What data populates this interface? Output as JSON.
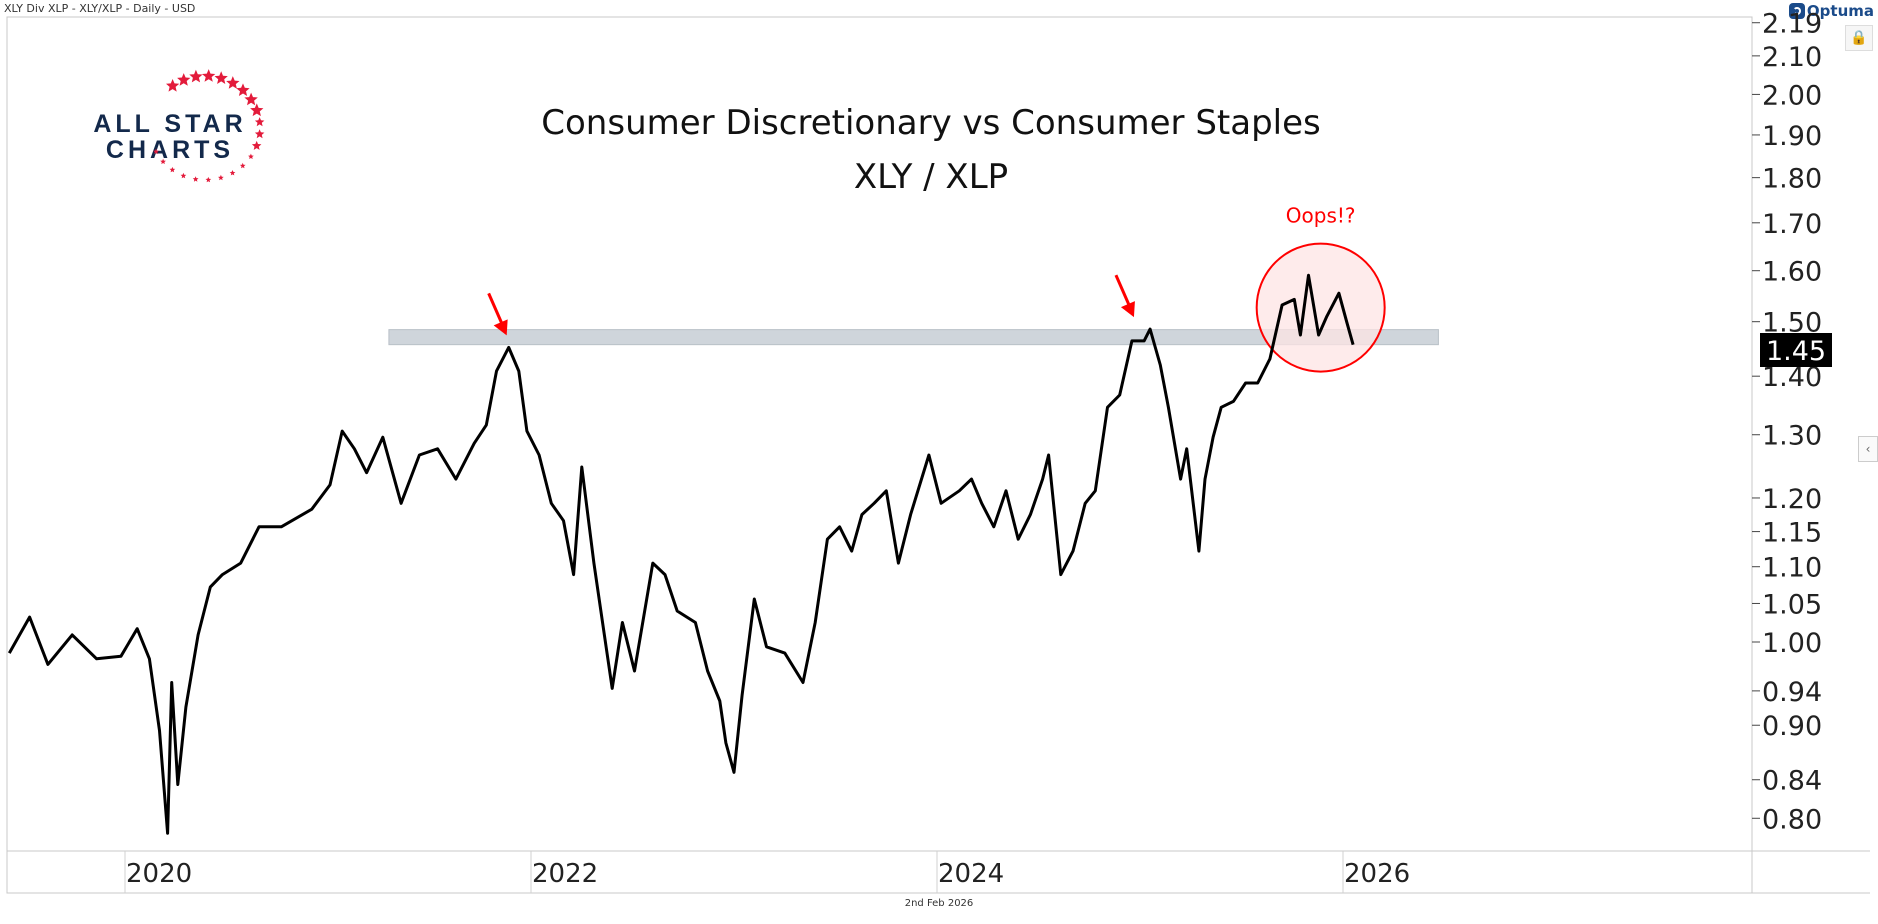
{
  "header": {
    "title": "XLY Div XLP - XLY/XLP - Daily - USD",
    "brand": "Optuma"
  },
  "logo": {
    "line1": "ALL STAR",
    "line2": "CHARTS"
  },
  "footer": {
    "date": "2nd Feb 2026"
  },
  "colors": {
    "line": "#000000",
    "band": "#cfd5db",
    "annotation": "#ff0000",
    "circle_fill": "#fde4e4",
    "logo_text": "#13294b",
    "logo_star": "#e31b3b"
  },
  "icons": {
    "lock": "lock-icon",
    "collapse": "chevron-left-icon"
  },
  "chart_data": {
    "type": "line",
    "title": "Consumer Discretionary vs Consumer Staples",
    "subtitle": "XLY / XLP",
    "xlabel": "",
    "ylabel": "",
    "yscale": "log",
    "ylim": [
      0.77,
      2.2
    ],
    "xlim": [
      2019.4,
      2027.2
    ],
    "x_ticks": [
      "2020",
      "2022",
      "2024",
      "2026"
    ],
    "y_ticks": [
      "2.19",
      "2.10",
      "2.00",
      "1.90",
      "1.80",
      "1.70",
      "1.60",
      "1.50",
      "1.40",
      "1.30",
      "1.20",
      "1.15",
      "1.10",
      "1.05",
      "1.00",
      "0.94",
      "0.90",
      "0.84",
      "0.80"
    ],
    "last_value": "1.45",
    "grid": false,
    "series": [
      {
        "name": "XLY/XLP",
        "x": [
          2019.43,
          2019.53,
          2019.62,
          2019.74,
          2019.86,
          2019.98,
          2020.06,
          2020.12,
          2020.17,
          2020.21,
          2020.23,
          2020.26,
          2020.3,
          2020.36,
          2020.42,
          2020.48,
          2020.57,
          2020.66,
          2020.77,
          2020.92,
          2021.01,
          2021.07,
          2021.13,
          2021.19,
          2021.27,
          2021.36,
          2021.45,
          2021.54,
          2021.63,
          2021.72,
          2021.78,
          2021.83,
          2021.89,
          2021.94,
          2021.98,
          2022.04,
          2022.1,
          2022.16,
          2022.21,
          2022.25,
          2022.31,
          2022.37,
          2022.4,
          2022.45,
          2022.51,
          2022.6,
          2022.66,
          2022.72,
          2022.81,
          2022.87,
          2022.93,
          2022.96,
          2023.0,
          2023.04,
          2023.1,
          2023.16,
          2023.25,
          2023.34,
          2023.4,
          2023.46,
          2023.52,
          2023.58,
          2023.63,
          2023.69,
          2023.75,
          2023.81,
          2023.87,
          2023.96,
          2024.02,
          2024.11,
          2024.17,
          2024.22,
          2024.28,
          2024.34,
          2024.4,
          2024.46,
          2024.52,
          2024.55,
          2024.61,
          2024.67,
          2024.73,
          2024.78,
          2024.84,
          2024.9,
          2024.96,
          2025.02,
          2025.05,
          2025.1,
          2025.14,
          2025.2,
          2025.23,
          2025.29,
          2025.32,
          2025.36,
          2025.4,
          2025.46,
          2025.52,
          2025.58,
          2025.64,
          2025.7,
          2025.76,
          2025.79,
          2025.83,
          2025.88,
          2025.92,
          2025.98,
          2026.02,
          2026.05
        ],
        "values": [
          0.986,
          1.032,
          0.972,
          1.009,
          0.979,
          0.982,
          1.017,
          0.979,
          0.894,
          0.785,
          0.95,
          0.835,
          0.921,
          1.009,
          1.072,
          1.089,
          1.105,
          1.157,
          1.157,
          1.183,
          1.22,
          1.306,
          1.277,
          1.239,
          1.296,
          1.192,
          1.267,
          1.277,
          1.229,
          1.286,
          1.316,
          1.409,
          1.452,
          1.409,
          1.306,
          1.267,
          1.192,
          1.166,
          1.089,
          1.248,
          1.105,
          0.994,
          0.943,
          1.025,
          0.964,
          1.105,
          1.089,
          1.04,
          1.025,
          0.964,
          0.928,
          0.88,
          0.848,
          0.935,
          1.056,
          0.994,
          0.986,
          0.95,
          1.025,
          1.139,
          1.157,
          1.122,
          1.175,
          1.192,
          1.211,
          1.105,
          1.175,
          1.267,
          1.192,
          1.211,
          1.229,
          1.192,
          1.157,
          1.211,
          1.139,
          1.175,
          1.229,
          1.267,
          1.089,
          1.122,
          1.192,
          1.211,
          1.346,
          1.367,
          1.464,
          1.464,
          1.486,
          1.42,
          1.346,
          1.229,
          1.277,
          1.122,
          1.229,
          1.296,
          1.346,
          1.356,
          1.388,
          1.388,
          1.431,
          1.532,
          1.543,
          1.475,
          1.591,
          1.475,
          1.51,
          1.555,
          1.497,
          1.457
        ]
      }
    ],
    "annotations": {
      "resistance_band": {
        "from": 1.457,
        "to": 1.485,
        "x_start": 2021.3,
        "x_end": 2026.47
      },
      "arrows": [
        {
          "x": 2021.89,
          "y": 1.452
        },
        {
          "x": 2024.98,
          "y": 1.486
        }
      ],
      "circle": {
        "x": 2025.89,
        "y": 1.527,
        "label": "Oops!?"
      }
    }
  }
}
